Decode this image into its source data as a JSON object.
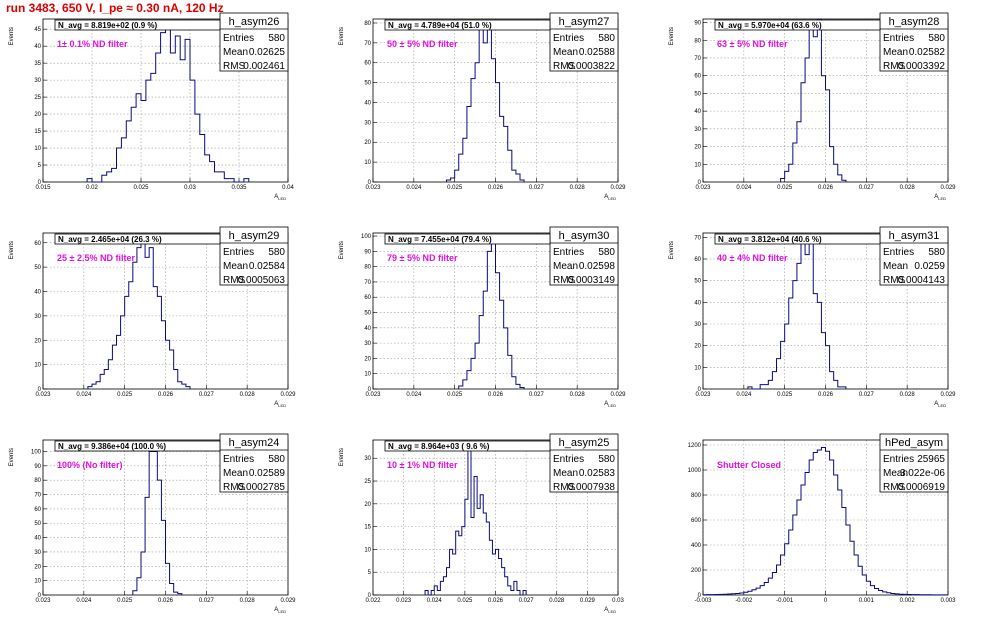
{
  "page": {
    "title": "run 3483,   650 V, I_pe ≈ 0.30 nA, 120 Hz"
  },
  "colors": {
    "histogram_line": "#0a0a80",
    "title_text": "#e00000",
    "filter_text": "#e010e0",
    "grid": "#9a9a9a",
    "axis": "#000000"
  },
  "chart_data": [
    {
      "type": "histogram",
      "name": "h_asym26",
      "stats": {
        "Entries": "580",
        "Mean": "0.02625",
        "RMS": "0.002461"
      },
      "navg": "N_avg = 8.819e+02 (0.9 %)",
      "filter": "1± 0.1% ND filter",
      "ylabel": "Events",
      "xlabel": "A_{LED}",
      "xlim": [
        0.015,
        0.04
      ],
      "xticks": [
        0.015,
        0.02,
        0.025,
        0.03,
        0.035,
        0.04
      ],
      "xtick_labels": [
        "0.015",
        "0.02",
        "0.025",
        "0.03",
        "0.035",
        "0.04"
      ],
      "ylim": [
        0,
        48
      ],
      "yticks": [
        0,
        5,
        10,
        15,
        20,
        25,
        30,
        35,
        40,
        45
      ],
      "grid": true,
      "bins": {
        "start": 0.0195,
        "width": 0.0005,
        "counts": [
          1,
          0,
          0,
          2,
          3,
          4,
          10,
          13,
          18,
          22,
          26,
          24,
          30,
          32,
          38,
          44,
          46,
          38,
          43,
          36,
          42,
          30,
          20,
          14,
          8,
          6,
          3,
          3,
          1,
          1,
          0,
          0,
          1
        ]
      }
    },
    {
      "type": "histogram",
      "name": "h_asym27",
      "stats": {
        "Entries": "580",
        "Mean": "0.02588",
        "RMS": "0.0003822"
      },
      "navg": "N_avg = 4.789e+04 (51.0 %)",
      "filter": "50 ± 5% ND filter",
      "ylabel": "Events",
      "xlabel": "A_{LED}",
      "xlim": [
        0.023,
        0.029
      ],
      "xticks": [
        0.023,
        0.024,
        0.025,
        0.026,
        0.027,
        0.028,
        0.029
      ],
      "xtick_labels": [
        "0.023",
        "0.024",
        "0.025",
        "0.026",
        "0.027",
        "0.028",
        "0.029"
      ],
      "ylim": [
        0,
        82
      ],
      "yticks": [
        0,
        10,
        20,
        30,
        40,
        50,
        60,
        70,
        80
      ],
      "grid": true,
      "bins": {
        "start": 0.0248,
        "width": 0.0001,
        "counts": [
          1,
          2,
          6,
          14,
          22,
          38,
          52,
          60,
          78,
          70,
          80,
          62,
          50,
          33,
          28,
          16,
          6,
          4,
          1
        ]
      }
    },
    {
      "type": "histogram",
      "name": "h_asym28",
      "stats": {
        "Entries": "580",
        "Mean": "0.02582",
        "RMS": "0.0003392"
      },
      "navg": "N_avg = 5.970e+04 (63.6 %)",
      "filter": "63 ± 5% ND filter",
      "ylabel": "Events",
      "xlabel": "A_{LED}",
      "xlim": [
        0.023,
        0.029
      ],
      "xticks": [
        0.023,
        0.024,
        0.025,
        0.026,
        0.027,
        0.028,
        0.029
      ],
      "xtick_labels": [
        "0.023",
        "0.024",
        "0.025",
        "0.026",
        "0.027",
        "0.028",
        "0.029"
      ],
      "ylim": [
        0,
        92
      ],
      "yticks": [
        0,
        10,
        20,
        30,
        40,
        50,
        60,
        70,
        80,
        90
      ],
      "grid": true,
      "bins": {
        "start": 0.0249,
        "width": 0.0001,
        "counts": [
          2,
          6,
          10,
          22,
          34,
          56,
          70,
          88,
          82,
          92,
          60,
          52,
          20,
          10,
          4,
          1
        ]
      }
    },
    {
      "type": "histogram",
      "name": "h_asym29",
      "stats": {
        "Entries": "580",
        "Mean": "0.02584",
        "RMS": "0.0005063"
      },
      "navg": "N_avg = 2.465e+04 (26.3 %)",
      "filter": "25 ± 2.5% ND filter",
      "ylabel": "Events",
      "xlabel": "A_{LED}",
      "xlim": [
        0.023,
        0.029
      ],
      "xticks": [
        0.023,
        0.024,
        0.025,
        0.026,
        0.027,
        0.028,
        0.029
      ],
      "xtick_labels": [
        "0.023",
        "0.024",
        "0.025",
        "0.026",
        "0.027",
        "0.028",
        "0.029"
      ],
      "ylim": [
        0,
        64
      ],
      "yticks": [
        0,
        10,
        20,
        30,
        40,
        50,
        60
      ],
      "grid": true,
      "bins": {
        "start": 0.0241,
        "width": 0.0001,
        "counts": [
          1,
          2,
          3,
          6,
          8,
          12,
          18,
          22,
          30,
          38,
          44,
          52,
          58,
          62,
          54,
          58,
          42,
          38,
          28,
          20,
          16,
          8,
          3,
          2,
          1
        ]
      }
    },
    {
      "type": "histogram",
      "name": "h_asym30",
      "stats": {
        "Entries": "580",
        "Mean": "0.02598",
        "RMS": "0.0003149"
      },
      "navg": "N_avg = 7.455e+04 (79.4 %)",
      "filter": "79 ± 5% ND filter",
      "ylabel": "Events",
      "xlabel": "A_{LED}",
      "xlim": [
        0.023,
        0.029
      ],
      "xticks": [
        0.023,
        0.024,
        0.025,
        0.026,
        0.027,
        0.028,
        0.029
      ],
      "xtick_labels": [
        "0.023",
        "0.024",
        "0.025",
        "0.026",
        "0.027",
        "0.028",
        "0.029"
      ],
      "ylim": [
        0,
        102
      ],
      "yticks": [
        0,
        10,
        20,
        30,
        40,
        50,
        60,
        70,
        80,
        90,
        100
      ],
      "grid": true,
      "bins": {
        "start": 0.0251,
        "width": 0.0001,
        "counts": [
          2,
          6,
          12,
          20,
          30,
          48,
          64,
          90,
          98,
          76,
          58,
          40,
          22,
          8,
          3,
          1
        ]
      }
    },
    {
      "type": "histogram",
      "name": "h_asym31",
      "stats": {
        "Entries": "580",
        "Mean": "0.0259",
        "RMS": "0.0004143"
      },
      "navg": "N_avg = 3.812e+04 (40.6 %)",
      "filter": "40 ± 4% ND filter",
      "ylabel": "Events",
      "xlabel": "A_{LED}",
      "xlim": [
        0.023,
        0.029
      ],
      "xticks": [
        0.023,
        0.024,
        0.025,
        0.026,
        0.027,
        0.028,
        0.029
      ],
      "xtick_labels": [
        "0.023",
        "0.024",
        "0.025",
        "0.026",
        "0.027",
        "0.028",
        "0.029"
      ],
      "ylim": [
        0,
        72
      ],
      "yticks": [
        0,
        10,
        20,
        30,
        40,
        50,
        60,
        70
      ],
      "grid": true,
      "bins": {
        "start": 0.0241,
        "width": 0.0001,
        "counts": [
          1,
          0,
          0,
          2,
          2,
          4,
          8,
          14,
          22,
          30,
          42,
          50,
          58,
          68,
          62,
          68,
          44,
          40,
          26,
          20,
          8,
          4,
          1,
          1
        ]
      }
    },
    {
      "type": "histogram",
      "name": "h_asym24",
      "stats": {
        "Entries": "580",
        "Mean": "0.02589",
        "RMS": "0.0002785"
      },
      "navg": "N_avg = 9.386e+04 (100.0 %)",
      "filter": "100% (No filter)",
      "ylabel": "Events",
      "xlabel": "A_{LED}",
      "xlim": [
        0.023,
        0.029
      ],
      "xticks": [
        0.023,
        0.024,
        0.025,
        0.026,
        0.027,
        0.028,
        0.029
      ],
      "xtick_labels": [
        "0.023",
        "0.024",
        "0.025",
        "0.026",
        "0.027",
        "0.028",
        "0.029"
      ],
      "ylim": [
        0,
        108
      ],
      "yticks": [
        0,
        10,
        20,
        30,
        40,
        50,
        60,
        70,
        80,
        90,
        100
      ],
      "grid": true,
      "bins": {
        "start": 0.0252,
        "width": 0.0001,
        "counts": [
          3,
          12,
          30,
          68,
          100,
          100,
          80,
          52,
          22,
          8,
          2,
          1
        ]
      }
    },
    {
      "type": "histogram",
      "name": "h_asym25",
      "stats": {
        "Entries": "580",
        "Mean": "0.02583",
        "RMS": "0.0007938"
      },
      "navg": "N_avg = 8.964e+03 ( 9.6 %)",
      "filter": "10 ± 1% ND filter",
      "ylabel": "Events",
      "xlabel": "A_{LED}",
      "xlim": [
        0.022,
        0.03
      ],
      "xticks": [
        0.022,
        0.023,
        0.024,
        0.025,
        0.026,
        0.027,
        0.028,
        0.029,
        0.03
      ],
      "xtick_labels": [
        "0.022",
        "0.023",
        "0.024",
        "0.025",
        "0.026",
        "0.027",
        "0.028",
        "0.029",
        "0.03"
      ],
      "ylim": [
        0,
        34
      ],
      "yticks": [
        0,
        5,
        10,
        15,
        20,
        25,
        30
      ],
      "grid": true,
      "bins": {
        "start": 0.0237,
        "width": 0.0001,
        "counts": [
          1,
          0,
          1,
          2,
          1,
          3,
          4,
          6,
          10,
          9,
          14,
          13,
          15,
          21,
          33,
          17,
          26,
          19,
          22,
          18,
          16,
          12,
          9,
          10,
          8,
          6,
          4,
          2,
          1,
          3,
          1,
          0,
          1
        ]
      }
    },
    {
      "type": "histogram",
      "name": "hPed_asym",
      "stats": {
        "Entries": "25965",
        "Mean": "3.022e-06",
        "RMS": "0.0006919"
      },
      "navg": "",
      "filter": "Shutter Closed",
      "ylabel": "",
      "xlabel": "",
      "xlim": [
        -0.003,
        0.003
      ],
      "xticks": [
        -0.003,
        -0.002,
        -0.001,
        0,
        0.001,
        0.002,
        0.003
      ],
      "xtick_labels": [
        "-0.003",
        "-0.002",
        "-0.001",
        "0",
        "0.001",
        "0.002",
        "0.003"
      ],
      "ylim": [
        0,
        1240
      ],
      "yticks": [
        0,
        200,
        400,
        600,
        800,
        1000,
        1200
      ],
      "grid": true,
      "bins": {
        "start": -0.003,
        "width": 0.0001,
        "counts": [
          2,
          3,
          3,
          4,
          5,
          6,
          8,
          10,
          12,
          16,
          22,
          30,
          42,
          55,
          75,
          100,
          135,
          180,
          240,
          320,
          410,
          520,
          640,
          760,
          880,
          980,
          1080,
          1140,
          1160,
          1180,
          1150,
          1080,
          960,
          840,
          700,
          560,
          430,
          320,
          230,
          160,
          110,
          75,
          52,
          36,
          25,
          18,
          12,
          9,
          6,
          5,
          4,
          3,
          3,
          2,
          2,
          2,
          1,
          1,
          1,
          1
        ]
      }
    }
  ]
}
